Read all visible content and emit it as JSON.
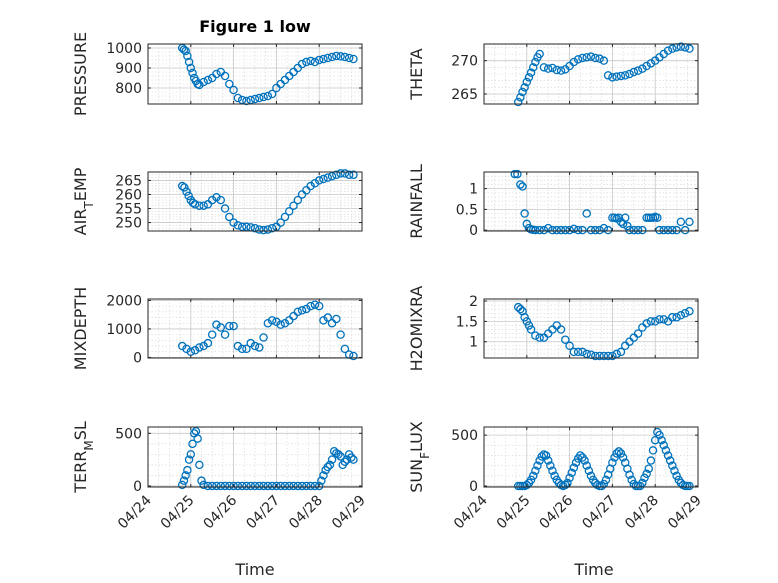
{
  "chart_data": [
    {
      "type": "scatter",
      "title": "Figure 1 low",
      "ylabel": "PRESSURE",
      "xlim": [
        "04/24",
        "04/29"
      ],
      "x_ticks": [
        "04/24",
        "04/25",
        "04/26",
        "04/27",
        "04/28",
        "04/29"
      ],
      "ylim": [
        720,
        1020
      ],
      "y_ticks": [
        800,
        900,
        1000
      ],
      "series": [
        {
          "x": [
            0.8,
            0.84,
            0.88,
            0.92,
            0.96,
            1.0,
            1.04,
            1.08,
            1.12,
            1.16,
            1.2,
            1.3,
            1.4,
            1.5,
            1.6,
            1.7,
            1.8,
            1.9,
            2.0,
            2.1,
            2.2,
            2.3,
            2.4,
            2.5,
            2.6,
            2.7,
            2.8,
            2.9,
            3.0,
            3.1,
            3.2,
            3.3,
            3.4,
            3.5,
            3.6,
            3.7,
            3.8,
            3.9,
            4.0,
            4.1,
            4.2,
            4.3,
            4.4,
            4.5,
            4.6,
            4.7,
            4.8
          ],
          "y": [
            1000,
            992,
            985,
            960,
            930,
            900,
            875,
            850,
            835,
            820,
            815,
            830,
            840,
            850,
            870,
            880,
            860,
            820,
            790,
            750,
            740,
            735,
            740,
            745,
            750,
            755,
            760,
            770,
            800,
            820,
            840,
            860,
            880,
            900,
            920,
            930,
            935,
            930,
            940,
            945,
            950,
            955,
            960,
            958,
            955,
            950,
            945
          ]
        }
      ]
    },
    {
      "type": "scatter",
      "title": "",
      "ylabel": "THETA",
      "xlim": [
        "04/24",
        "04/29"
      ],
      "x_ticks": [
        "04/24",
        "04/25",
        "04/26",
        "04/27",
        "04/28",
        "04/29"
      ],
      "ylim": [
        263.5,
        272.5
      ],
      "y_ticks": [
        265,
        270
      ],
      "series": [
        {
          "x": [
            0.8,
            0.85,
            0.9,
            0.95,
            1.0,
            1.05,
            1.1,
            1.15,
            1.2,
            1.25,
            1.3,
            1.4,
            1.5,
            1.6,
            1.7,
            1.8,
            1.9,
            2.0,
            2.1,
            2.2,
            2.3,
            2.4,
            2.5,
            2.6,
            2.7,
            2.8,
            2.9,
            3.0,
            3.1,
            3.2,
            3.3,
            3.4,
            3.5,
            3.6,
            3.7,
            3.8,
            3.9,
            4.0,
            4.1,
            4.2,
            4.3,
            4.4,
            4.5,
            4.6,
            4.7,
            4.8
          ],
          "y": [
            263.8,
            264.5,
            265.3,
            266.0,
            266.8,
            267.5,
            268.2,
            269.0,
            269.8,
            270.5,
            271.0,
            269.0,
            268.8,
            268.9,
            268.6,
            268.5,
            268.7,
            269.2,
            269.8,
            270.2,
            270.4,
            270.5,
            270.6,
            270.4,
            270.3,
            270.0,
            267.8,
            267.5,
            267.6,
            267.7,
            267.8,
            268.0,
            268.3,
            268.5,
            268.8,
            269.2,
            269.6,
            270.0,
            270.5,
            271.0,
            271.5,
            271.8,
            272.0,
            272.1,
            272.0,
            271.8
          ]
        }
      ]
    },
    {
      "type": "scatter",
      "title": "",
      "ylabel": "AIR_TEMP",
      "xlim": [
        "04/24",
        "04/29"
      ],
      "x_ticks": [
        "04/24",
        "04/25",
        "04/26",
        "04/27",
        "04/28",
        "04/29"
      ],
      "ylim": [
        247,
        268
      ],
      "y_ticks": [
        250,
        255,
        260,
        265
      ],
      "series": [
        {
          "x": [
            0.8,
            0.85,
            0.9,
            0.95,
            1.0,
            1.05,
            1.1,
            1.2,
            1.3,
            1.4,
            1.5,
            1.6,
            1.7,
            1.8,
            1.9,
            2.0,
            2.1,
            2.2,
            2.3,
            2.4,
            2.5,
            2.6,
            2.7,
            2.8,
            2.9,
            3.0,
            3.1,
            3.2,
            3.3,
            3.4,
            3.5,
            3.6,
            3.7,
            3.8,
            3.9,
            4.0,
            4.1,
            4.2,
            4.3,
            4.4,
            4.5,
            4.6,
            4.7,
            4.8
          ],
          "y": [
            263,
            262.5,
            261,
            259.5,
            258,
            257,
            256.5,
            256,
            256,
            256.5,
            258,
            259,
            258,
            255,
            252,
            250,
            249,
            248.5,
            248.5,
            248.3,
            248,
            247.5,
            247.3,
            247.5,
            248,
            248.5,
            250,
            252,
            254,
            256,
            258,
            260,
            261.5,
            263,
            264,
            265,
            265.5,
            266,
            266.5,
            267,
            267.5,
            267.5,
            267,
            267
          ]
        }
      ]
    },
    {
      "type": "scatter",
      "title": "",
      "ylabel": "RAINFALL",
      "xlim": [
        "04/24",
        "04/29"
      ],
      "x_ticks": [
        "04/24",
        "04/25",
        "04/26",
        "04/27",
        "04/28",
        "04/29"
      ],
      "ylim": [
        -0.02,
        1.4
      ],
      "y_ticks": [
        0,
        0.5,
        1
      ],
      "series": [
        {
          "x": [
            0.72,
            0.78,
            0.85,
            0.9,
            0.95,
            1.0,
            1.05,
            1.1,
            1.15,
            1.2,
            1.3,
            1.4,
            1.5,
            1.6,
            1.7,
            1.8,
            1.9,
            2.0,
            2.1,
            2.2,
            2.3,
            2.4,
            2.5,
            2.6,
            2.7,
            2.8,
            2.9,
            3.0,
            3.05,
            3.1,
            3.15,
            3.2,
            3.25,
            3.3,
            3.35,
            3.4,
            3.5,
            3.6,
            3.7,
            3.8,
            3.85,
            3.9,
            3.95,
            4.0,
            4.05,
            4.1,
            4.2,
            4.3,
            4.4,
            4.5,
            4.6,
            4.7,
            4.8
          ],
          "y": [
            1.35,
            1.35,
            1.1,
            1.05,
            0.4,
            0.15,
            0.05,
            0.02,
            0.01,
            0,
            0,
            0,
            0.05,
            0,
            0,
            0,
            0,
            0,
            0.03,
            0,
            0,
            0.4,
            0,
            0,
            0,
            0.05,
            0,
            0.3,
            0.3,
            0.28,
            0.3,
            0.2,
            0.15,
            0.3,
            0.1,
            0,
            0,
            0,
            0,
            0.3,
            0.3,
            0.3,
            0.3,
            0.32,
            0.3,
            0,
            0,
            0,
            0,
            0,
            0.2,
            0,
            0.2
          ]
        }
      ]
    },
    {
      "type": "scatter",
      "title": "",
      "ylabel": "MIXDEPTH",
      "xlim": [
        "04/24",
        "04/29"
      ],
      "x_ticks": [
        "04/24",
        "04/25",
        "04/26",
        "04/27",
        "04/28",
        "04/29"
      ],
      "ylim": [
        -20,
        2050
      ],
      "y_ticks": [
        0,
        1000,
        2000
      ],
      "series": [
        {
          "x": [
            0.8,
            0.9,
            1.0,
            1.1,
            1.2,
            1.3,
            1.4,
            1.5,
            1.6,
            1.7,
            1.8,
            1.9,
            2.0,
            2.1,
            2.2,
            2.3,
            2.4,
            2.5,
            2.6,
            2.7,
            2.8,
            2.9,
            3.0,
            3.1,
            3.2,
            3.3,
            3.4,
            3.5,
            3.6,
            3.7,
            3.8,
            3.9,
            4.0,
            4.1,
            4.2,
            4.3,
            4.4,
            4.5,
            4.6,
            4.7,
            4.8
          ],
          "y": [
            400,
            300,
            200,
            250,
            350,
            400,
            500,
            800,
            1150,
            1050,
            800,
            1100,
            1100,
            400,
            300,
            300,
            500,
            400,
            350,
            700,
            1200,
            1300,
            1250,
            1150,
            1200,
            1300,
            1450,
            1600,
            1650,
            1700,
            1800,
            1850,
            1800,
            1300,
            1400,
            1200,
            1350,
            800,
            300,
            100,
            50
          ]
        }
      ]
    },
    {
      "type": "scatter",
      "title": "",
      "ylabel": "H2OMIXRA",
      "xlim": [
        "04/24",
        "04/29"
      ],
      "x_ticks": [
        "04/24",
        "04/25",
        "04/26",
        "04/27",
        "04/28",
        "04/29"
      ],
      "ylim": [
        0.6,
        2.05
      ],
      "y_ticks": [
        1,
        1.5,
        2
      ],
      "series": [
        {
          "x": [
            0.8,
            0.85,
            0.9,
            0.95,
            1.0,
            1.05,
            1.1,
            1.2,
            1.3,
            1.4,
            1.5,
            1.6,
            1.7,
            1.8,
            1.9,
            2.0,
            2.1,
            2.2,
            2.3,
            2.4,
            2.5,
            2.6,
            2.7,
            2.8,
            2.9,
            3.0,
            3.1,
            3.2,
            3.3,
            3.4,
            3.5,
            3.6,
            3.7,
            3.8,
            3.9,
            4.0,
            4.1,
            4.2,
            4.3,
            4.4,
            4.5,
            4.6,
            4.7,
            4.8
          ],
          "y": [
            1.85,
            1.8,
            1.75,
            1.6,
            1.5,
            1.4,
            1.3,
            1.15,
            1.1,
            1.1,
            1.2,
            1.3,
            1.4,
            1.3,
            1.05,
            0.9,
            0.75,
            0.75,
            0.75,
            0.7,
            0.68,
            0.65,
            0.65,
            0.65,
            0.65,
            0.65,
            0.7,
            0.75,
            0.9,
            1.0,
            1.1,
            1.2,
            1.35,
            1.45,
            1.5,
            1.5,
            1.55,
            1.55,
            1.5,
            1.6,
            1.6,
            1.65,
            1.7,
            1.75
          ]
        }
      ]
    },
    {
      "type": "scatter",
      "title": "",
      "ylabel": "TERR_MSL",
      "xlim": [
        "04/24",
        "04/29"
      ],
      "x_ticks": [
        "04/24",
        "04/25",
        "04/26",
        "04/27",
        "04/28",
        "04/29"
      ],
      "ylim": [
        -10,
        560
      ],
      "y_ticks": [
        0,
        500
      ],
      "series": [
        {
          "x": [
            0.8,
            0.84,
            0.88,
            0.92,
            0.96,
            1.0,
            1.04,
            1.08,
            1.12,
            1.16,
            1.2,
            1.25,
            1.3,
            1.4,
            1.5,
            1.6,
            1.7,
            1.8,
            1.9,
            2.0,
            2.1,
            2.2,
            2.3,
            2.4,
            2.5,
            2.6,
            2.7,
            2.8,
            2.9,
            3.0,
            3.1,
            3.2,
            3.3,
            3.4,
            3.5,
            3.6,
            3.7,
            3.8,
            3.9,
            4.0,
            4.05,
            4.1,
            4.15,
            4.2,
            4.25,
            4.3,
            4.35,
            4.4,
            4.45,
            4.5,
            4.55,
            4.6,
            4.65,
            4.7,
            4.75,
            4.8
          ],
          "y": [
            10,
            50,
            100,
            150,
            250,
            300,
            400,
            500,
            520,
            450,
            200,
            50,
            10,
            0,
            0,
            0,
            0,
            0,
            0,
            0,
            0,
            0,
            0,
            0,
            0,
            0,
            0,
            0,
            0,
            0,
            0,
            0,
            0,
            0,
            0,
            0,
            0,
            0,
            0,
            0,
            50,
            100,
            150,
            180,
            200,
            250,
            330,
            310,
            300,
            280,
            200,
            230,
            250,
            300,
            270,
            250
          ]
        }
      ]
    },
    {
      "type": "scatter",
      "title": "",
      "ylabel": "SUN_FLUX",
      "xlim": [
        "04/24",
        "04/29"
      ],
      "x_ticks": [
        "04/24",
        "04/25",
        "04/26",
        "04/27",
        "04/28",
        "04/29"
      ],
      "ylim": [
        -10,
        580
      ],
      "y_ticks": [
        0,
        500
      ],
      "series": [
        {
          "x": [
            0.8,
            0.85,
            0.9,
            0.95,
            1.0,
            1.05,
            1.1,
            1.15,
            1.2,
            1.25,
            1.3,
            1.35,
            1.4,
            1.45,
            1.5,
            1.55,
            1.6,
            1.65,
            1.7,
            1.75,
            1.8,
            1.85,
            1.9,
            1.95,
            2.0,
            2.05,
            2.1,
            2.15,
            2.2,
            2.25,
            2.3,
            2.35,
            2.4,
            2.45,
            2.5,
            2.55,
            2.6,
            2.65,
            2.7,
            2.75,
            2.8,
            2.85,
            2.9,
            2.95,
            3.0,
            3.05,
            3.1,
            3.15,
            3.2,
            3.25,
            3.3,
            3.35,
            3.4,
            3.45,
            3.5,
            3.55,
            3.6,
            3.65,
            3.7,
            3.75,
            3.8,
            3.85,
            3.9,
            3.95,
            4.0,
            4.05,
            4.1,
            4.15,
            4.2,
            4.25,
            4.3,
            4.35,
            4.4,
            4.45,
            4.5,
            4.55,
            4.6,
            4.65,
            4.7,
            4.75,
            4.8
          ],
          "y": [
            0,
            0,
            0,
            0,
            10,
            30,
            60,
            100,
            150,
            200,
            250,
            290,
            310,
            300,
            250,
            200,
            150,
            100,
            60,
            30,
            10,
            0,
            10,
            30,
            80,
            130,
            180,
            230,
            270,
            300,
            280,
            250,
            200,
            150,
            100,
            60,
            30,
            10,
            0,
            0,
            20,
            60,
            110,
            170,
            230,
            280,
            320,
            340,
            320,
            280,
            230,
            170,
            110,
            60,
            20,
            0,
            0,
            0,
            30,
            80,
            120,
            170,
            250,
            350,
            450,
            530,
            500,
            450,
            400,
            350,
            300,
            250,
            200,
            150,
            100,
            60,
            30,
            10,
            0,
            0,
            0
          ]
        }
      ]
    }
  ]
}
